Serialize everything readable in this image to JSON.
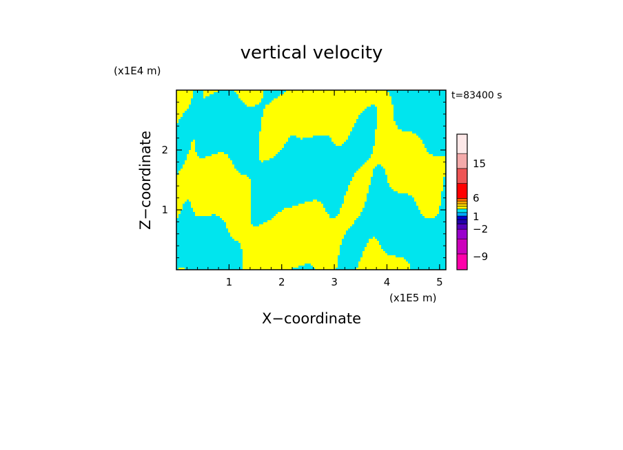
{
  "chart_data": {
    "type": "heatmap",
    "title": "vertical velocity",
    "xlabel": "X−coordinate",
    "ylabel": "Z−coordinate",
    "x_scale_label": "(x1E5 m)",
    "y_scale_label": "(x1E4 m)",
    "time_label": "t=83400 s",
    "x_range": [
      0,
      5.12
    ],
    "y_range": [
      0,
      3.0
    ],
    "x_ticks": [
      1,
      2,
      3,
      4,
      5
    ],
    "y_ticks": [
      1,
      2
    ],
    "x_tick_labels": [
      "1",
      "2",
      "3",
      "4",
      "5"
    ],
    "y_tick_labels": [
      "1",
      "2"
    ],
    "field_colors": {
      "positive": "#ffff00",
      "negative": "#00e5ee"
    },
    "colorbar": {
      "levels": [
        {
          "color": "#ff00aa"
        },
        {
          "color": "#cc00bb"
        },
        {
          "color": "#9900cc"
        },
        {
          "color": "#5500bb"
        },
        {
          "color": "#2200aa"
        },
        {
          "color": "#0000cc"
        },
        {
          "color": "#00aaff"
        },
        {
          "color": "#00e5ee"
        },
        {
          "color": "#ffff00"
        },
        {
          "color": "#ffd700"
        },
        {
          "color": "#ffaa00"
        },
        {
          "color": "#ff6600"
        },
        {
          "color": "#ff0000"
        },
        {
          "color": "#ee5555"
        },
        {
          "color": "#f4aaaa"
        },
        {
          "color": "#fde8e8"
        }
      ],
      "tick_labels": [
        {
          "label": "−9",
          "value": -9
        },
        {
          "label": "−2",
          "value": -2
        },
        {
          "label": "1",
          "value": 1
        },
        {
          "label": "6",
          "value": 6
        },
        {
          "label": "15",
          "value": 15
        }
      ]
    }
  }
}
